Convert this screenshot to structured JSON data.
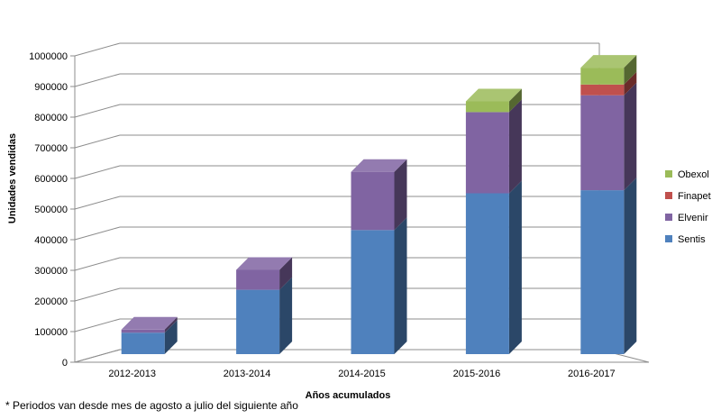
{
  "chart_data": {
    "type": "bar",
    "stacked": true,
    "categories": [
      "2012-2013",
      "2013-2014",
      "2014-2015",
      "2015-2016",
      "2016-2017"
    ],
    "series": [
      {
        "name": "Sentis",
        "color": "#4F81BD",
        "values": [
          70000,
          210000,
          405000,
          525000,
          535000
        ]
      },
      {
        "name": "Elvenir",
        "color": "#8064A2",
        "values": [
          10000,
          65000,
          190000,
          265000,
          310000
        ]
      },
      {
        "name": "Finapet",
        "color": "#C0504D",
        "values": [
          0,
          0,
          0,
          0,
          35000
        ]
      },
      {
        "name": "Obexol",
        "color": "#9BBB59",
        "values": [
          0,
          0,
          0,
          35000,
          55000
        ]
      }
    ],
    "xlabel": "Años acumulados",
    "ylabel": "Unidades vendidas",
    "ylim": [
      0,
      1000000
    ],
    "yticks": [
      0,
      100000,
      200000,
      300000,
      400000,
      500000,
      600000,
      700000,
      800000,
      900000,
      1000000
    ],
    "grid": true,
    "legend": "right",
    "footnote": "* Periodos van desde mes de agosto a julio del siguiente año"
  }
}
